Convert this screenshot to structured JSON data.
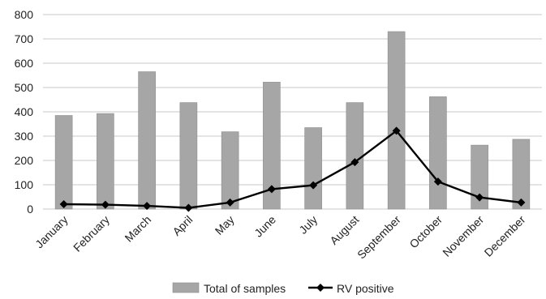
{
  "chart_data": {
    "type": "bar",
    "categories": [
      "January",
      "February",
      "March",
      "April",
      "May",
      "June",
      "July",
      "August",
      "September",
      "October",
      "November",
      "December"
    ],
    "series": [
      {
        "name": "Total of samples",
        "type": "bar",
        "color": "#a6a6a6",
        "values": [
          385,
          393,
          565,
          438,
          318,
          522,
          335,
          438,
          730,
          462,
          263,
          287
        ]
      },
      {
        "name": "RV positive",
        "type": "line",
        "color": "#000000",
        "marker": "diamond",
        "values": [
          20,
          18,
          13,
          5,
          27,
          82,
          98,
          193,
          322,
          113,
          48,
          27
        ]
      }
    ],
    "title": "",
    "xlabel": "",
    "ylabel": "",
    "ylim": [
      0,
      800
    ],
    "yticks": [
      0,
      100,
      200,
      300,
      400,
      500,
      600,
      700,
      800
    ],
    "grid": true,
    "legend_position": "bottom"
  }
}
